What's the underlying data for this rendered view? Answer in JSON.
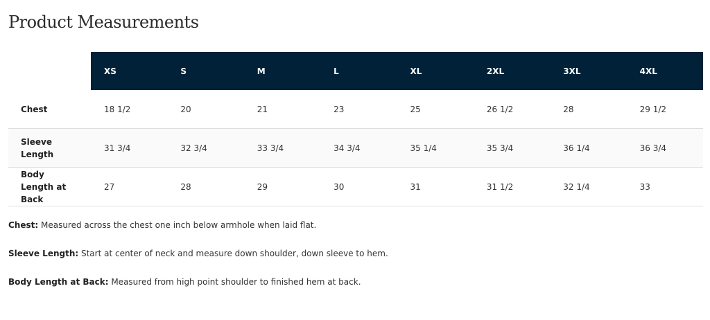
{
  "title": "Product Measurements",
  "colors": {
    "header_bg": "#002137",
    "header_text": "#ffffff"
  },
  "sizes": [
    "XS",
    "S",
    "M",
    "L",
    "XL",
    "2XL",
    "3XL",
    "4XL"
  ],
  "rows": [
    {
      "label": "Chest",
      "values": [
        "18 1/2",
        "20",
        "21",
        "23",
        "25",
        "26 1/2",
        "28",
        "29 1/2"
      ]
    },
    {
      "label": "Sleeve Length",
      "values": [
        "31 3/4",
        "32 3/4",
        "33 3/4",
        "34 3/4",
        "35 1/4",
        "35 3/4",
        "36 1/4",
        "36 3/4"
      ]
    },
    {
      "label": "Body Length at Back",
      "values": [
        "27",
        "28",
        "29",
        "30",
        "31",
        "31 1/2",
        "32 1/4",
        "33"
      ]
    }
  ],
  "notes": [
    {
      "term": "Chest:",
      "text": " Measured across the chest one inch below armhole when laid flat."
    },
    {
      "term": "Sleeve Length:",
      "text": " Start at center of neck and measure down shoulder, down sleeve to hem."
    },
    {
      "term": "Body Length at Back:",
      "text": " Measured from high point shoulder to finished hem at back."
    }
  ]
}
